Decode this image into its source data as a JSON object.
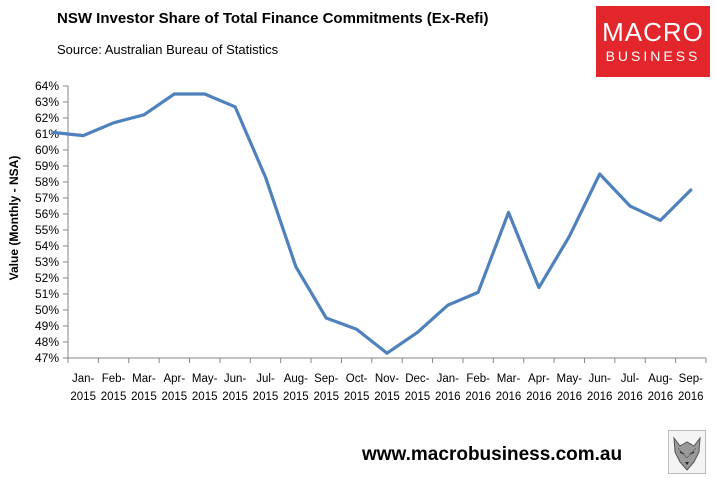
{
  "header": {
    "title": "NSW Investor Share of Total Finance Commitments (Ex-Refi)",
    "source": "Source: Australian Bureau of Statistics"
  },
  "logo": {
    "line1": "MACRO",
    "line2": "BUSINESS"
  },
  "footer": {
    "url": "www.macrobusiness.com.au"
  },
  "chart_data": {
    "type": "line",
    "title": "NSW Investor Share of Total Finance Commitments (Ex-Refi)",
    "ylabel": "Value (Monthly - NSA)",
    "xlabel": "",
    "ylim": [
      47,
      64
    ],
    "y_ticks": [
      "47%",
      "48%",
      "49%",
      "50%",
      "51%",
      "52%",
      "53%",
      "54%",
      "55%",
      "56%",
      "57%",
      "58%",
      "59%",
      "60%",
      "61%",
      "62%",
      "63%",
      "64%"
    ],
    "categories": [
      [
        "Jan-",
        "2015"
      ],
      [
        "Feb-",
        "2015"
      ],
      [
        "Mar-",
        "2015"
      ],
      [
        "Apr-",
        "2015"
      ],
      [
        "May-",
        "2015"
      ],
      [
        "Jun-",
        "2015"
      ],
      [
        "Jul-",
        "2015"
      ],
      [
        "Aug-",
        "2015"
      ],
      [
        "Sep-",
        "2015"
      ],
      [
        "Oct-",
        "2015"
      ],
      [
        "Nov-",
        "2015"
      ],
      [
        "Dec-",
        "2015"
      ],
      [
        "Jan-",
        "2016"
      ],
      [
        "Feb-",
        "2016"
      ],
      [
        "Mar-",
        "2016"
      ],
      [
        "Apr-",
        "2016"
      ],
      [
        "May-",
        "2016"
      ],
      [
        "Jun-",
        "2016"
      ],
      [
        "Jul-",
        "2016"
      ],
      [
        "Aug-",
        "2016"
      ],
      [
        "Sep-",
        "2016"
      ]
    ],
    "series": [
      {
        "color": "#4f81bd",
        "points": [
          {
            "x": "2014-12",
            "y": 61.1
          },
          {
            "x": "2015-01",
            "y": 60.9
          },
          {
            "x": "2015-02",
            "y": 61.7
          },
          {
            "x": "2015-03",
            "y": 62.2
          },
          {
            "x": "2015-04",
            "y": 63.5
          },
          {
            "x": "2015-05",
            "y": 63.5
          },
          {
            "x": "2015-06",
            "y": 62.7
          },
          {
            "x": "2015-07",
            "y": 58.3
          },
          {
            "x": "2015-08",
            "y": 52.7
          },
          {
            "x": "2015-09",
            "y": 49.5
          },
          {
            "x": "2015-10",
            "y": 48.8
          },
          {
            "x": "2015-11",
            "y": 47.3
          },
          {
            "x": "2015-12",
            "y": 48.6
          },
          {
            "x": "2016-01",
            "y": 50.3
          },
          {
            "x": "2016-02",
            "y": 51.1
          },
          {
            "x": "2016-03",
            "y": 56.1
          },
          {
            "x": "2016-04",
            "y": 51.4
          },
          {
            "x": "2016-05",
            "y": 54.6
          },
          {
            "x": "2016-06",
            "y": 58.5
          },
          {
            "x": "2016-07",
            "y": 56.5
          },
          {
            "x": "2016-08",
            "y": 55.6
          },
          {
            "x": "2016-09",
            "y": 57.5
          }
        ]
      }
    ],
    "grid": false,
    "legend": "none"
  }
}
